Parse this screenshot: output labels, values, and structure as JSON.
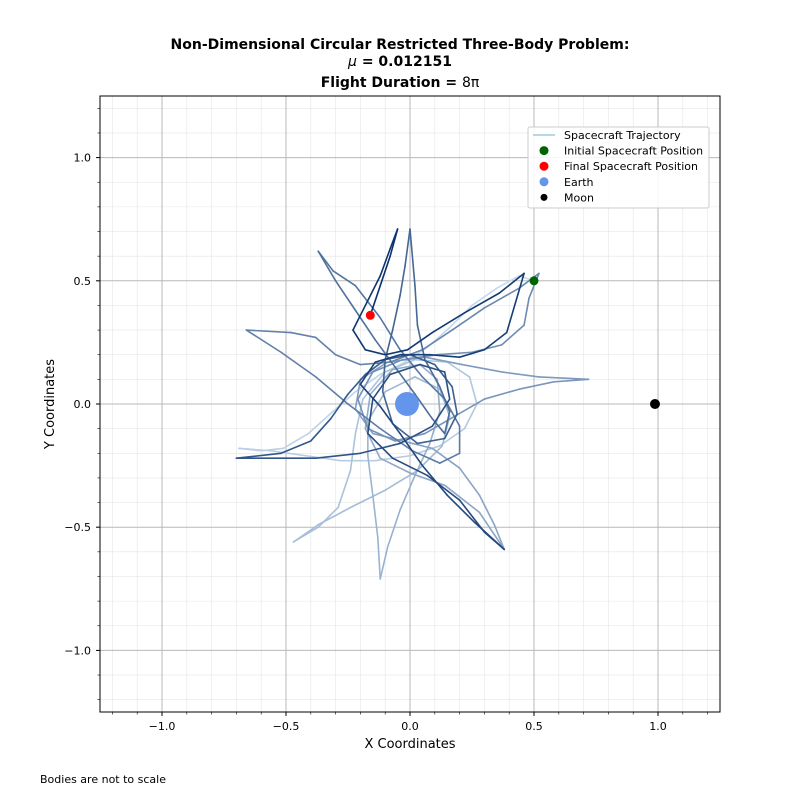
{
  "title": {
    "line1": "Non-Dimensional Circular Restricted Three-Body Problem:",
    "line2_symbol": "μ",
    "line2_value": " = 0.012151",
    "line3_label": "Flight Duration = ",
    "line3_value": "8π"
  },
  "footnote": "Bodies are not to scale",
  "colors": {
    "initial": "#006400",
    "final": "#ff0000",
    "earth": "#6495ed",
    "moon": "#000000",
    "trajectory_light": "#c6dbef",
    "trajectory_dark": "#08306b"
  },
  "chart_data": {
    "type": "line",
    "xlabel": "X Coordinates",
    "ylabel": "Y Coordinates",
    "xlim": [
      -1.25,
      1.25
    ],
    "ylim": [
      -1.25,
      1.25
    ],
    "xticks": [
      -1.0,
      -0.5,
      0.0,
      0.5,
      1.0
    ],
    "yticks": [
      -1.0,
      -0.5,
      0.0,
      0.5,
      1.0
    ],
    "xtick_labels": [
      "−1.0",
      "−0.5",
      "0.0",
      "0.5",
      "1.0"
    ],
    "ytick_labels": [
      "−1.0",
      "−0.5",
      "0.0",
      "0.5",
      "1.0"
    ],
    "grid": true,
    "minor_grid": true,
    "legend_position": "top-right",
    "legend": [
      {
        "label": "Spacecraft Trajectory",
        "kind": "line",
        "color": "#9ecae1"
      },
      {
        "label": "Initial Spacecraft Position",
        "kind": "dot",
        "color": "#006400"
      },
      {
        "label": "Final Spacecraft Position",
        "kind": "dot",
        "color": "#ff0000"
      },
      {
        "label": "Earth",
        "kind": "dot",
        "color": "#6495ed"
      },
      {
        "label": "Moon",
        "kind": "dot",
        "color": "#000000"
      }
    ],
    "trajectory": [
      [
        0.5,
        0.5
      ],
      [
        0.44,
        0.52
      ],
      [
        0.35,
        0.47
      ],
      [
        0.25,
        0.4
      ],
      [
        0.16,
        0.31
      ],
      [
        0.07,
        0.23
      ],
      [
        -0.02,
        0.17
      ],
      [
        -0.12,
        0.12
      ],
      [
        -0.22,
        0.05
      ],
      [
        -0.31,
        -0.03
      ],
      [
        -0.41,
        -0.12
      ],
      [
        -0.51,
        -0.18
      ],
      [
        -0.6,
        -0.19
      ],
      [
        -0.69,
        -0.18
      ],
      [
        -0.56,
        -0.19
      ],
      [
        -0.42,
        -0.21
      ],
      [
        -0.28,
        -0.23
      ],
      [
        -0.14,
        -0.23
      ],
      [
        0.0,
        -0.21
      ],
      [
        0.12,
        -0.17
      ],
      [
        0.22,
        -0.1
      ],
      [
        0.27,
        0.0
      ],
      [
        0.24,
        0.11
      ],
      [
        0.15,
        0.17
      ],
      [
        0.02,
        0.18
      ],
      [
        -0.1,
        0.13
      ],
      [
        -0.19,
        0.02
      ],
      [
        -0.22,
        -0.12
      ],
      [
        -0.24,
        -0.27
      ],
      [
        -0.29,
        -0.42
      ],
      [
        -0.37,
        -0.5
      ],
      [
        -0.47,
        -0.56
      ],
      [
        -0.37,
        -0.49
      ],
      [
        -0.24,
        -0.42
      ],
      [
        -0.1,
        -0.35
      ],
      [
        0.03,
        -0.27
      ],
      [
        0.13,
        -0.17
      ],
      [
        0.16,
        -0.05
      ],
      [
        0.12,
        0.06
      ],
      [
        0.02,
        0.11
      ],
      [
        -0.1,
        0.05
      ],
      [
        -0.17,
        -0.07
      ],
      [
        -0.17,
        -0.21
      ],
      [
        -0.15,
        -0.37
      ],
      [
        -0.13,
        -0.54
      ],
      [
        -0.12,
        -0.71
      ],
      [
        -0.09,
        -0.58
      ],
      [
        -0.04,
        -0.43
      ],
      [
        0.02,
        -0.29
      ],
      [
        0.08,
        -0.16
      ],
      [
        0.12,
        -0.03
      ],
      [
        0.11,
        0.1
      ],
      [
        0.04,
        0.16
      ],
      [
        -0.07,
        0.14
      ],
      [
        -0.16,
        0.04
      ],
      [
        -0.18,
        -0.1
      ],
      [
        -0.12,
        -0.22
      ],
      [
        0.0,
        -0.28
      ],
      [
        0.14,
        -0.33
      ],
      [
        0.28,
        -0.44
      ],
      [
        0.38,
        -0.59
      ],
      [
        0.34,
        -0.49
      ],
      [
        0.28,
        -0.37
      ],
      [
        0.2,
        -0.26
      ],
      [
        0.09,
        -0.18
      ],
      [
        -0.03,
        -0.15
      ],
      [
        -0.15,
        -0.12
      ],
      [
        -0.22,
        -0.02
      ],
      [
        -0.2,
        0.1
      ],
      [
        -0.09,
        0.17
      ],
      [
        0.06,
        0.19
      ],
      [
        0.21,
        0.16
      ],
      [
        0.37,
        0.13
      ],
      [
        0.52,
        0.11
      ],
      [
        0.72,
        0.1
      ],
      [
        0.58,
        0.09
      ],
      [
        0.44,
        0.06
      ],
      [
        0.3,
        0.02
      ],
      [
        0.18,
        -0.05
      ],
      [
        0.06,
        -0.12
      ],
      [
        -0.06,
        -0.15
      ],
      [
        -0.17,
        -0.1
      ],
      [
        -0.21,
        0.02
      ],
      [
        -0.15,
        0.13
      ],
      [
        -0.03,
        0.18
      ],
      [
        0.11,
        0.2
      ],
      [
        0.25,
        0.21
      ],
      [
        0.37,
        0.24
      ],
      [
        0.46,
        0.32
      ],
      [
        0.48,
        0.43
      ],
      [
        0.52,
        0.53
      ],
      [
        0.44,
        0.47
      ],
      [
        0.3,
        0.39
      ],
      [
        0.17,
        0.3
      ],
      [
        0.05,
        0.22
      ],
      [
        -0.08,
        0.17
      ],
      [
        -0.2,
        0.16
      ],
      [
        -0.3,
        0.2
      ],
      [
        -0.38,
        0.27
      ],
      [
        -0.48,
        0.29
      ],
      [
        -0.66,
        0.3
      ],
      [
        -0.52,
        0.21
      ],
      [
        -0.38,
        0.11
      ],
      [
        -0.25,
        0.0
      ],
      [
        -0.12,
        -0.1
      ],
      [
        0.01,
        -0.19
      ],
      [
        0.12,
        -0.24
      ],
      [
        0.2,
        -0.2
      ],
      [
        0.2,
        -0.09
      ],
      [
        0.14,
        0.02
      ],
      [
        0.05,
        0.11
      ],
      [
        -0.04,
        0.22
      ],
      [
        -0.12,
        0.35
      ],
      [
        -0.22,
        0.48
      ],
      [
        -0.31,
        0.54
      ],
      [
        -0.37,
        0.62
      ],
      [
        -0.3,
        0.5
      ],
      [
        -0.22,
        0.38
      ],
      [
        -0.14,
        0.26
      ],
      [
        -0.06,
        0.15
      ],
      [
        0.02,
        0.04
      ],
      [
        0.09,
        -0.06
      ],
      [
        0.14,
        -0.12
      ],
      [
        0.16,
        -0.03
      ],
      [
        0.12,
        0.07
      ],
      [
        0.06,
        0.18
      ],
      [
        0.03,
        0.32
      ],
      [
        0.02,
        0.48
      ],
      [
        0.0,
        0.71
      ],
      [
        -0.02,
        0.56
      ],
      [
        -0.04,
        0.44
      ],
      [
        -0.07,
        0.3
      ],
      [
        -0.1,
        0.18
      ],
      [
        -0.11,
        0.05
      ],
      [
        -0.07,
        -0.08
      ],
      [
        0.03,
        -0.16
      ],
      [
        0.14,
        -0.14
      ],
      [
        0.19,
        -0.04
      ],
      [
        0.17,
        0.07
      ],
      [
        0.1,
        0.16
      ],
      [
        0.0,
        0.2
      ],
      [
        -0.1,
        0.18
      ],
      [
        -0.18,
        0.12
      ],
      [
        -0.25,
        0.04
      ],
      [
        -0.32,
        -0.06
      ],
      [
        -0.4,
        -0.15
      ],
      [
        -0.52,
        -0.2
      ],
      [
        -0.7,
        -0.22
      ],
      [
        -0.55,
        -0.22
      ],
      [
        -0.38,
        -0.22
      ],
      [
        -0.2,
        -0.2
      ],
      [
        -0.04,
        -0.16
      ],
      [
        0.09,
        -0.09
      ],
      [
        0.16,
        0.02
      ],
      [
        0.14,
        0.13
      ],
      [
        0.04,
        0.16
      ],
      [
        -0.08,
        0.12
      ],
      [
        -0.15,
        0.02
      ],
      [
        -0.17,
        -0.12
      ],
      [
        -0.07,
        -0.22
      ],
      [
        0.07,
        -0.29
      ],
      [
        0.2,
        -0.39
      ],
      [
        0.3,
        -0.52
      ],
      [
        0.38,
        -0.59
      ],
      [
        0.26,
        -0.48
      ],
      [
        0.15,
        -0.37
      ],
      [
        0.05,
        -0.25
      ],
      [
        -0.04,
        -0.12
      ],
      [
        -0.12,
        -0.01
      ],
      [
        -0.2,
        0.08
      ],
      [
        -0.14,
        0.17
      ],
      [
        -0.04,
        0.2
      ],
      [
        0.08,
        0.2
      ],
      [
        0.2,
        0.19
      ],
      [
        0.3,
        0.22
      ],
      [
        0.39,
        0.29
      ],
      [
        0.46,
        0.53
      ],
      [
        0.36,
        0.45
      ],
      [
        0.22,
        0.37
      ],
      [
        0.09,
        0.29
      ],
      [
        -0.01,
        0.22
      ],
      [
        -0.1,
        0.2
      ],
      [
        -0.18,
        0.22
      ],
      [
        -0.23,
        0.3
      ],
      [
        -0.18,
        0.4
      ],
      [
        -0.12,
        0.52
      ],
      [
        -0.08,
        0.63
      ],
      [
        -0.05,
        0.71
      ],
      [
        -0.08,
        0.6
      ],
      [
        -0.12,
        0.48
      ],
      [
        -0.16,
        0.36
      ]
    ],
    "bodies": {
      "initial": [
        0.5,
        0.5
      ],
      "final": [
        -0.16,
        0.36
      ],
      "earth": [
        -0.012151,
        0.0
      ],
      "moon": [
        0.987849,
        0.0
      ]
    }
  }
}
